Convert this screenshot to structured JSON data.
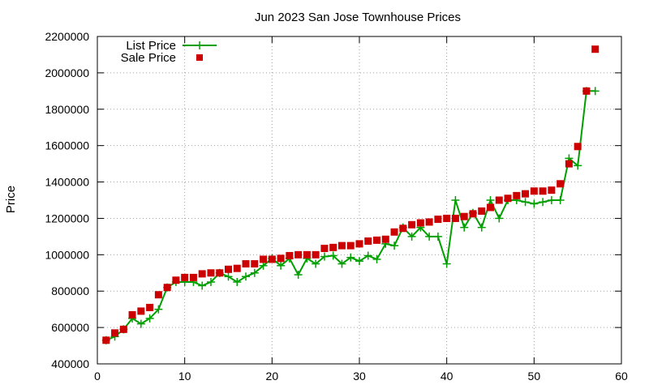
{
  "chart_data": {
    "type": "line",
    "title": "Jun 2023 San Jose Townhouse Prices",
    "xlabel": "",
    "ylabel": "Price",
    "xlim": [
      0,
      60
    ],
    "ylim": [
      400000,
      2200000
    ],
    "xticks": [
      0,
      10,
      20,
      30,
      40,
      50,
      60
    ],
    "yticks": [
      400000,
      600000,
      800000,
      1000000,
      1200000,
      1400000,
      1600000,
      1800000,
      2000000,
      2200000
    ],
    "grid": true,
    "legend_position": "top-left",
    "series": [
      {
        "name": "List Price",
        "style": "line+cross",
        "color": "#00a000",
        "x": [
          1,
          2,
          3,
          4,
          5,
          6,
          7,
          8,
          9,
          10,
          11,
          12,
          13,
          14,
          15,
          16,
          17,
          18,
          19,
          20,
          21,
          22,
          23,
          24,
          25,
          26,
          27,
          28,
          29,
          30,
          31,
          32,
          33,
          34,
          35,
          36,
          37,
          38,
          39,
          40,
          41,
          42,
          43,
          44,
          45,
          46,
          47,
          48,
          49,
          50,
          51,
          52,
          53,
          54,
          55,
          56,
          57
        ],
        "values": [
          530000,
          550000,
          590000,
          650000,
          620000,
          650000,
          700000,
          820000,
          850000,
          850000,
          850000,
          830000,
          850000,
          900000,
          880000,
          850000,
          880000,
          900000,
          940000,
          980000,
          940000,
          980000,
          890000,
          980000,
          950000,
          990000,
          995000,
          950000,
          985000,
          965000,
          995000,
          975000,
          1060000,
          1050000,
          1150000,
          1100000,
          1150000,
          1100000,
          1100000,
          950000,
          1300000,
          1150000,
          1230000,
          1150000,
          1300000,
          1200000,
          1300000,
          1300000,
          1290000,
          1280000,
          1290000,
          1300000,
          1300000,
          1530000,
          1490000,
          1900000,
          1900000
        ]
      },
      {
        "name": "Sale Price",
        "style": "square",
        "color": "#cc0000",
        "x": [
          1,
          2,
          3,
          4,
          5,
          6,
          7,
          8,
          9,
          10,
          11,
          12,
          13,
          14,
          15,
          16,
          17,
          18,
          19,
          20,
          21,
          22,
          23,
          24,
          25,
          26,
          27,
          28,
          29,
          30,
          31,
          32,
          33,
          34,
          35,
          36,
          37,
          38,
          39,
          40,
          41,
          42,
          43,
          44,
          45,
          46,
          47,
          48,
          49,
          50,
          51,
          52,
          53,
          54,
          55,
          56,
          57
        ],
        "values": [
          530000,
          570000,
          590000,
          670000,
          690000,
          710000,
          780000,
          820000,
          860000,
          875000,
          875000,
          895000,
          900000,
          900000,
          920000,
          925000,
          950000,
          950000,
          975000,
          975000,
          980000,
          995000,
          1000000,
          1000000,
          1000000,
          1035000,
          1040000,
          1050000,
          1050000,
          1060000,
          1075000,
          1080000,
          1085000,
          1125000,
          1145000,
          1165000,
          1175000,
          1180000,
          1195000,
          1200000,
          1200000,
          1210000,
          1225000,
          1240000,
          1260000,
          1300000,
          1310000,
          1325000,
          1335000,
          1350000,
          1350000,
          1355000,
          1390000,
          1500000,
          1595000,
          1900000,
          2130000
        ]
      }
    ]
  }
}
